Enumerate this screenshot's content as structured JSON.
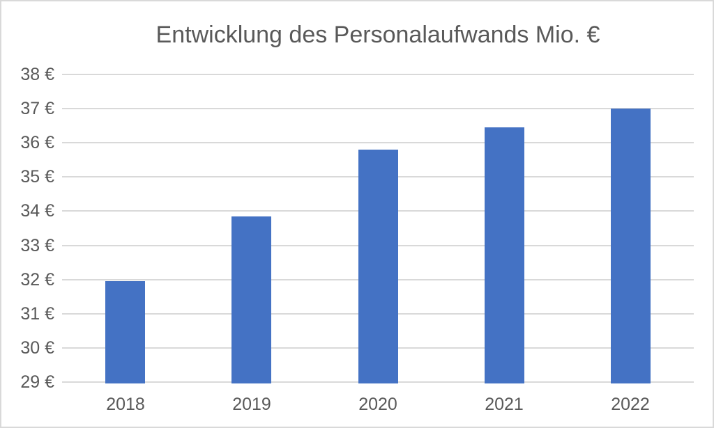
{
  "chart_data": {
    "type": "bar",
    "title": "Entwicklung des Personalaufwands Mio. €",
    "categories": [
      "2018",
      "2019",
      "2020",
      "2021",
      "2022"
    ],
    "values": [
      31.95,
      33.85,
      35.8,
      36.45,
      37.0
    ],
    "xlabel": "",
    "ylabel": "",
    "ylim": [
      29,
      38
    ],
    "ytick_step": 1,
    "ytick_labels": [
      "29 €",
      "30 €",
      "31 €",
      "32 €",
      "33 €",
      "34 €",
      "35 €",
      "36 €",
      "37 €",
      "38 €"
    ],
    "grid": true,
    "legend": false,
    "colors": {
      "bar": "#4472C4",
      "gridline": "#D9D9D9",
      "text": "#595959",
      "frame_border": "#D9D9D9",
      "background": "#FFFFFF"
    }
  }
}
